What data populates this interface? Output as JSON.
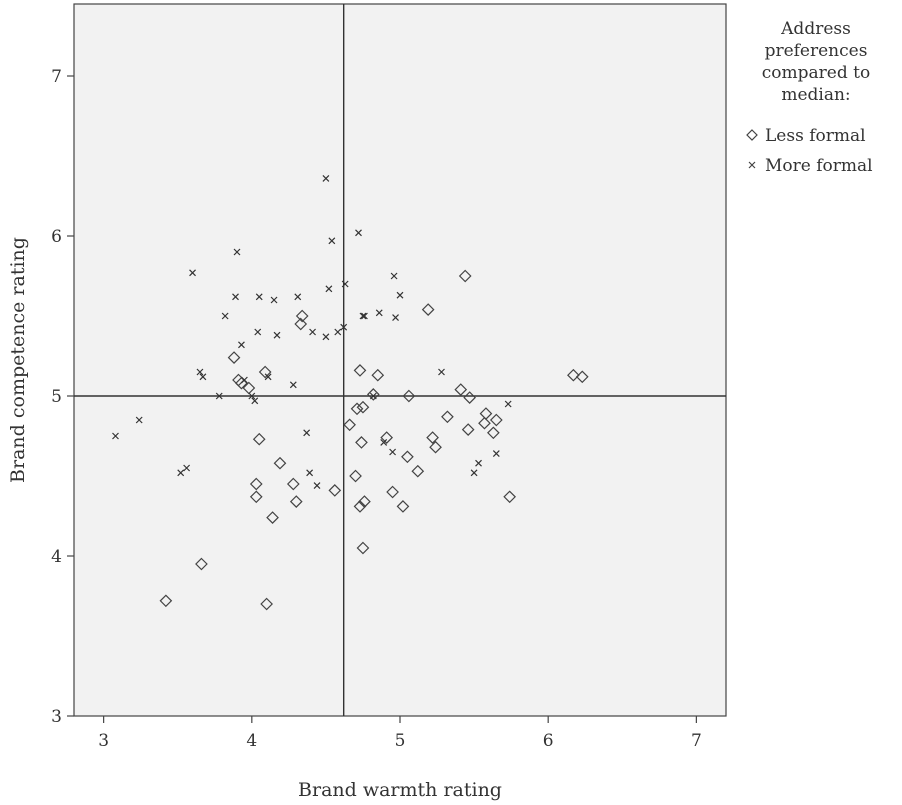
{
  "chart_data": {
    "type": "scatter",
    "xlabel": "Brand warmth rating",
    "ylabel": "Brand competence rating",
    "xlim": [
      2.8,
      7.2
    ],
    "ylim": [
      3,
      7.45
    ],
    "xticks": [
      3,
      4,
      5,
      6,
      7
    ],
    "yticks": [
      3,
      4,
      5,
      6,
      7
    ],
    "reference_lines": {
      "x": 4.62,
      "y": 5.0
    },
    "grid": false,
    "plot_background": "#f2f2f2",
    "legend": {
      "position": "right",
      "title_lines": [
        "Address",
        "preferences",
        "compared to",
        "median:"
      ],
      "entries": [
        "Less formal",
        "More formal"
      ]
    },
    "series": [
      {
        "name": "Less formal",
        "marker": "diamond",
        "points": [
          [
            3.42,
            3.72
          ],
          [
            3.66,
            3.95
          ],
          [
            4.1,
            3.7
          ],
          [
            4.14,
            4.24
          ],
          [
            4.03,
            4.37
          ],
          [
            4.03,
            4.45
          ],
          [
            4.19,
            4.58
          ],
          [
            4.28,
            4.45
          ],
          [
            4.3,
            4.34
          ],
          [
            4.56,
            4.41
          ],
          [
            4.05,
            4.73
          ],
          [
            3.88,
            5.24
          ],
          [
            3.93,
            5.08
          ],
          [
            3.98,
            5.05
          ],
          [
            3.91,
            5.1
          ],
          [
            4.09,
            5.15
          ],
          [
            4.33,
            5.45
          ],
          [
            4.34,
            5.5
          ],
          [
            4.7,
            4.5
          ],
          [
            4.73,
            4.31
          ],
          [
            4.76,
            4.34
          ],
          [
            4.75,
            4.05
          ],
          [
            4.66,
            4.82
          ],
          [
            4.71,
            4.92
          ],
          [
            4.75,
            4.93
          ],
          [
            4.74,
            4.71
          ],
          [
            4.73,
            5.16
          ],
          [
            4.82,
            5.01
          ],
          [
            4.85,
            5.13
          ],
          [
            4.91,
            4.74
          ],
          [
            4.95,
            4.4
          ],
          [
            5.02,
            4.31
          ],
          [
            5.05,
            4.62
          ],
          [
            5.12,
            4.53
          ],
          [
            5.06,
            5.0
          ],
          [
            5.19,
            5.54
          ],
          [
            5.22,
            4.74
          ],
          [
            5.24,
            4.68
          ],
          [
            5.32,
            4.87
          ],
          [
            5.41,
            5.04
          ],
          [
            5.47,
            4.99
          ],
          [
            5.46,
            4.79
          ],
          [
            5.44,
            5.75
          ],
          [
            5.57,
            4.83
          ],
          [
            5.58,
            4.89
          ],
          [
            5.63,
            4.77
          ],
          [
            5.65,
            4.85
          ],
          [
            5.74,
            4.37
          ],
          [
            6.17,
            5.13
          ],
          [
            6.23,
            5.12
          ]
        ]
      },
      {
        "name": "More formal",
        "marker": "x",
        "points": [
          [
            3.08,
            4.75
          ],
          [
            3.24,
            4.85
          ],
          [
            3.52,
            4.52
          ],
          [
            3.56,
            4.55
          ],
          [
            3.6,
            5.77
          ],
          [
            3.65,
            5.15
          ],
          [
            3.67,
            5.12
          ],
          [
            3.78,
            5.0
          ],
          [
            3.82,
            5.5
          ],
          [
            3.89,
            5.62
          ],
          [
            3.9,
            5.9
          ],
          [
            3.93,
            5.32
          ],
          [
            3.95,
            5.1
          ],
          [
            4.0,
            5.0
          ],
          [
            4.02,
            4.97
          ],
          [
            4.04,
            5.4
          ],
          [
            4.05,
            5.62
          ],
          [
            4.11,
            5.12
          ],
          [
            4.15,
            5.6
          ],
          [
            4.17,
            5.38
          ],
          [
            4.28,
            5.07
          ],
          [
            4.31,
            5.62
          ],
          [
            4.37,
            4.77
          ],
          [
            4.39,
            4.52
          ],
          [
            4.41,
            5.4
          ],
          [
            4.44,
            4.44
          ],
          [
            4.5,
            6.36
          ],
          [
            4.5,
            5.37
          ],
          [
            4.52,
            5.67
          ],
          [
            4.54,
            5.97
          ],
          [
            4.58,
            5.4
          ],
          [
            4.62,
            5.43
          ],
          [
            4.63,
            5.7
          ],
          [
            4.72,
            6.02
          ],
          [
            4.75,
            5.5
          ],
          [
            4.76,
            5.5
          ],
          [
            4.82,
            5.0
          ],
          [
            4.86,
            5.52
          ],
          [
            4.89,
            4.71
          ],
          [
            4.95,
            4.65
          ],
          [
            4.96,
            5.75
          ],
          [
            4.97,
            5.49
          ],
          [
            5.0,
            5.63
          ],
          [
            5.28,
            5.15
          ],
          [
            5.5,
            4.52
          ],
          [
            5.53,
            4.58
          ],
          [
            5.65,
            4.64
          ],
          [
            5.73,
            4.95
          ]
        ]
      }
    ]
  }
}
